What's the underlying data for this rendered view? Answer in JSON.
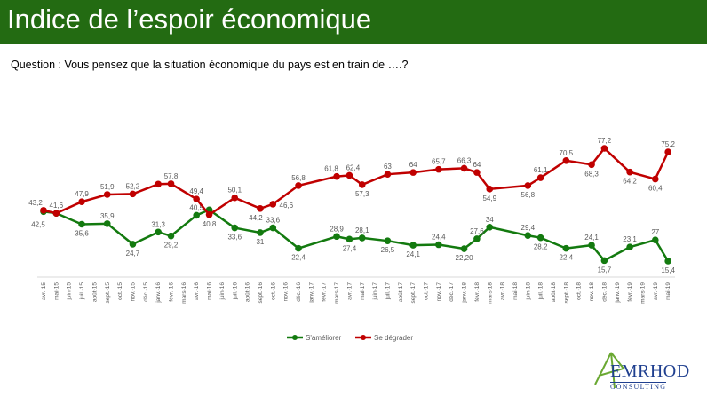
{
  "header": {
    "title": "Indice de l’espoir économique"
  },
  "question": "Question : Vous pensez que la situation économique du pays est en train de ….?",
  "logo": {
    "name": "EMRHOD",
    "sub": "CONSULTING"
  },
  "chart_data": {
    "type": "line",
    "title": "",
    "xlabel": "",
    "ylabel": "",
    "grid": false,
    "legend_position": "bottom",
    "categories": [
      "avr.-15",
      "mai-15",
      "juin-15",
      "juil.-15",
      "août-15",
      "sept.-15",
      "oct.-15",
      "nov.-15",
      "déc.-15",
      "janv.-16",
      "févr.-16",
      "mars-16",
      "avr.-16",
      "mai-16",
      "juin-16",
      "juil.-16",
      "août-16",
      "sept.-16",
      "oct.-16",
      "nov.-16",
      "déc.-16",
      "janv.-17",
      "févr.-17",
      "mars-17",
      "avr.-17",
      "mai-17",
      "juin-17",
      "juil.-17",
      "août-17",
      "sept.-17",
      "oct.-17",
      "nov.-17",
      "déc.-17",
      "janv.-18",
      "févr.-18",
      "mars-18",
      "avr.-18",
      "mai-18",
      "juin-18",
      "juil.-18",
      "août-18",
      "sept.-18",
      "oct.-18",
      "nov.-18",
      "déc.-18",
      "janv.-19",
      "févr.-19",
      "mars-19",
      "avr.-19",
      "mai-19"
    ],
    "series": [
      {
        "name": "S'améliorer",
        "color": "#137a0f",
        "values": [
          42.5,
          41.6,
          null,
          35.6,
          null,
          35.9,
          null,
          24.7,
          null,
          31.3,
          29.2,
          null,
          40.5,
          43.5,
          null,
          33.6,
          null,
          31,
          33.6,
          null,
          22.4,
          null,
          null,
          28.9,
          27.4,
          28.1,
          null,
          26.5,
          null,
          24.1,
          null,
          24.4,
          null,
          22.2,
          27.6,
          34,
          null,
          null,
          29.4,
          28.2,
          null,
          22.4,
          null,
          24.1,
          15.7,
          null,
          23.1,
          null,
          27,
          15.4
        ],
        "labels": [
          "42,5",
          null,
          null,
          "35,6",
          null,
          "35,9",
          null,
          "24,7",
          null,
          "31,3",
          "29,2",
          null,
          "40,5",
          null,
          null,
          "33,6",
          null,
          "31",
          "33,6",
          null,
          "22,4",
          null,
          null,
          "28,9",
          "27,4",
          "28,1",
          null,
          "26,5",
          null,
          "24,1",
          null,
          "24,4",
          null,
          "22,20",
          "27,6",
          "34",
          null,
          null,
          "29,4",
          "28,2",
          null,
          "22,4",
          null,
          "24,1",
          "15,7",
          null,
          "23,1",
          null,
          "27",
          "15,4"
        ]
      },
      {
        "name": "Se dégrader",
        "color": "#c00000",
        "values": [
          43.2,
          41.6,
          null,
          47.9,
          null,
          51.9,
          null,
          52.2,
          null,
          57.6,
          57.8,
          null,
          49.4,
          40.8,
          null,
          50.1,
          null,
          44.2,
          46.6,
          null,
          56.8,
          null,
          null,
          61.8,
          62.4,
          57.3,
          null,
          63,
          null,
          64,
          null,
          65.7,
          null,
          66.3,
          64,
          54.9,
          null,
          null,
          56.8,
          61.1,
          null,
          70.5,
          null,
          68.3,
          77.2,
          null,
          64.2,
          null,
          60.4,
          75.2
        ],
        "labels": [
          "43,2",
          "41,6",
          null,
          "47,9",
          null,
          "51,9",
          null,
          "52,2",
          null,
          null,
          "57,8",
          null,
          "49,4",
          "40,8",
          null,
          "50,1",
          null,
          "44,2",
          "46,6",
          null,
          "56,8",
          null,
          null,
          "61,8",
          "62,4",
          "57,3",
          null,
          "63",
          null,
          "64",
          null,
          "65,7",
          null,
          "66,3",
          "64",
          "54,9",
          null,
          null,
          "56,8",
          "61,1",
          null,
          "70,5",
          null,
          "68,3",
          "77,2",
          null,
          "64,2",
          null,
          "60,4",
          "75,2"
        ]
      }
    ]
  }
}
